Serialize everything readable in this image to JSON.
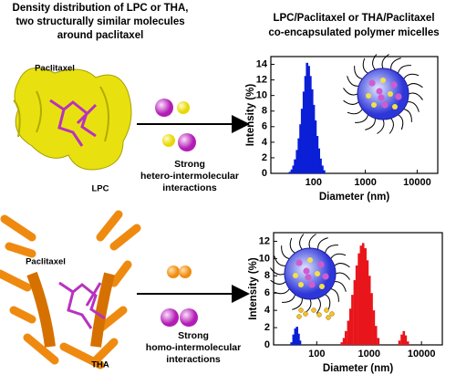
{
  "left_title": [
    "Density distribution of LPC or THA,",
    "two structurally similar molecules",
    "around paclitaxel"
  ],
  "right_title": [
    "LPC/Paclitaxel or THA/Paclitaxel",
    "co-encapsulated polymer micelles"
  ],
  "top_panel": {
    "drug_label": "Paclitaxel",
    "lipid_label": "LPC",
    "interaction": [
      "Strong",
      "hetero-intermolecular",
      "interactions"
    ]
  },
  "bottom_panel": {
    "drug_label": "Paclitaxel",
    "lipid_label": "THA",
    "interaction": [
      "Strong",
      "homo-intermolecular",
      "interactions"
    ]
  },
  "chart_data": [
    {
      "type": "bar",
      "x_label": "Diameter (nm)",
      "y_label": "Intensity (%)",
      "log_x": true,
      "xlim": [
        15,
        25000
      ],
      "xticks": [
        100,
        1000,
        10000
      ],
      "ylim": [
        0,
        15
      ],
      "yticks": [
        0,
        2,
        4,
        6,
        8,
        10,
        12,
        14
      ],
      "series": [
        {
          "color": "#0a1fd6",
          "x": [
            35,
            38,
            41,
            44,
            48,
            52,
            56,
            60,
            65,
            70,
            75,
            81,
            87,
            94,
            101,
            109,
            118,
            127,
            137,
            148,
            160
          ],
          "values": [
            0.2,
            0.5,
            1,
            1.8,
            3,
            4.5,
            6.3,
            8.3,
            10.5,
            12.5,
            14.2,
            13.8,
            12.5,
            10.8,
            8.8,
            6.8,
            4.8,
            3.2,
            1.9,
            1,
            0.4
          ]
        }
      ]
    },
    {
      "type": "bar",
      "x_label": "Diameter (nm)",
      "y_label": "Intensity (%)",
      "log_x": true,
      "xlim": [
        15,
        25000
      ],
      "xticks": [
        100,
        1000,
        10000
      ],
      "ylim": [
        0,
        13
      ],
      "yticks": [
        0,
        2,
        4,
        6,
        8,
        10,
        12
      ],
      "series": [
        {
          "color": "#0a1fd6",
          "x": [
            33,
            36,
            39,
            42,
            45,
            48
          ],
          "values": [
            0.3,
            1.2,
            1.9,
            2.1,
            1.3,
            0.5
          ]
        },
        {
          "color": "#e8161b",
          "x": [
            300,
            330,
            360,
            400,
            440,
            480,
            530,
            580,
            640,
            700,
            770,
            850,
            930,
            1020,
            1120,
            1230,
            1350,
            1500
          ],
          "values": [
            0.3,
            0.8,
            1.6,
            2.8,
            4.2,
            5.8,
            7.5,
            9.2,
            10.6,
            11.5,
            11.8,
            11.2,
            9.8,
            8,
            6,
            4,
            2.2,
            0.8
          ]
        },
        {
          "color": "#e8161b",
          "x": [
            3800,
            4200,
            4600,
            5000,
            5500
          ],
          "values": [
            0.5,
            1.2,
            1.6,
            1.1,
            0.4
          ]
        }
      ]
    }
  ]
}
